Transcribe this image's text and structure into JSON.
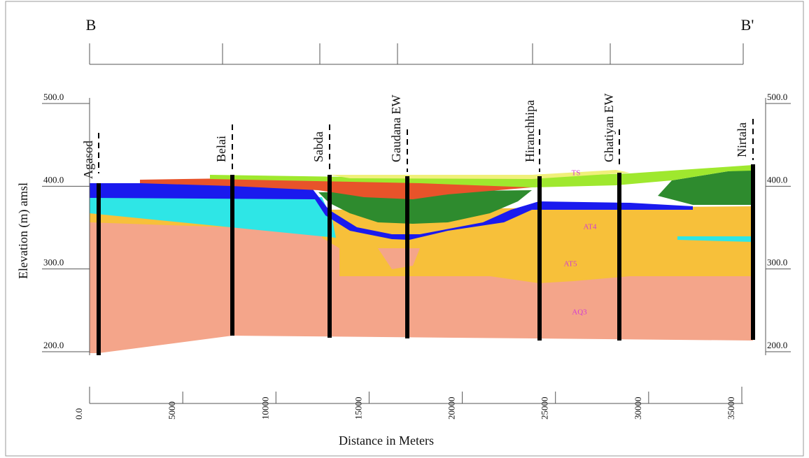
{
  "header": {
    "left_marker": "B",
    "right_marker": "B'"
  },
  "elevation_axis": {
    "title": "Elevation (m) amsl",
    "ticks": [
      {
        "value": 500,
        "label": "500.0"
      },
      {
        "value": 400,
        "label": "400.0"
      },
      {
        "value": 300,
        "label": "300.0"
      },
      {
        "value": 200,
        "label": "200.0"
      }
    ]
  },
  "distance_axis": {
    "title": "Distance in Meters",
    "ticks": [
      {
        "value": 0,
        "label": "0.0"
      },
      5000,
      10000,
      15000,
      20000,
      25000,
      30000,
      35000
    ]
  },
  "wells": [
    "Agasod",
    "Belai",
    "Sabda",
    "Gaudana EW",
    "Hiranchhipa",
    "Ghatiyan EW",
    "Nirtala"
  ],
  "layers": [
    "TS",
    "AT4",
    "AT5",
    "AQ3"
  ]
}
